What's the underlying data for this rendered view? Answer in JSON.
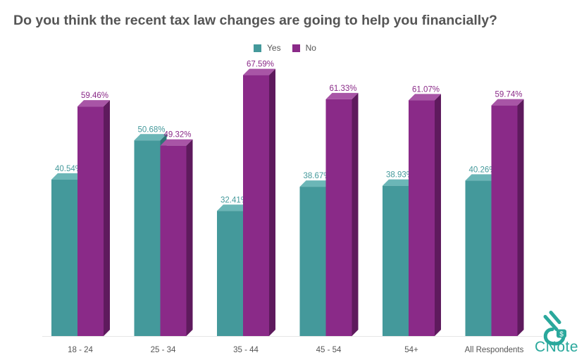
{
  "title": "Do you think the recent tax law changes are going to help you financially?",
  "legend": [
    {
      "label": "Yes",
      "color": "#44999b"
    },
    {
      "label": "No",
      "color": "#8a2a88"
    }
  ],
  "logo_text": "CNote",
  "chart_data": {
    "type": "bar",
    "title": "Do you think the recent tax law changes are going to help you financially?",
    "categories": [
      "18 - 24",
      "25 - 34",
      "35 - 44",
      "45 - 54",
      "54+",
      "All Respondents"
    ],
    "series": [
      {
        "name": "Yes",
        "color": "#44999b",
        "values": [
          40.54,
          50.68,
          32.41,
          38.67,
          38.93,
          40.26
        ],
        "labels": [
          "40.54%",
          "50.68%",
          "32.41%",
          "38.67%",
          "38.93%",
          "40.26%"
        ]
      },
      {
        "name": "No",
        "color": "#8a2a88",
        "values": [
          59.46,
          49.32,
          67.59,
          61.33,
          61.07,
          59.74
        ],
        "labels": [
          "59.46%",
          "49.32%",
          "67.59%",
          "61.33%",
          "61.07%",
          "59.74%"
        ]
      }
    ],
    "ylim": [
      0,
      70
    ],
    "grid": false,
    "legend_position": "top-center"
  }
}
